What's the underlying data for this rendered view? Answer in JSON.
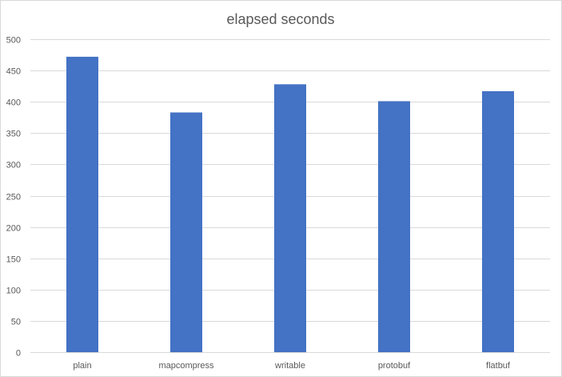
{
  "chart_data": {
    "type": "bar",
    "title": "elapsed seconds",
    "xlabel": "",
    "ylabel": "",
    "categories": [
      "plain",
      "mapcompress",
      "writable",
      "protobuf",
      "flatbuf"
    ],
    "values": [
      472,
      383,
      428,
      401,
      417
    ],
    "ylim": [
      0,
      500
    ],
    "yticks": [
      "0",
      "50",
      "100",
      "150",
      "200",
      "250",
      "300",
      "350",
      "400",
      "450",
      "500"
    ],
    "grid": true,
    "legend": "none",
    "colors": {
      "bar": "#4472C4",
      "grid": "#D9D9D9",
      "text": "#595959"
    }
  }
}
